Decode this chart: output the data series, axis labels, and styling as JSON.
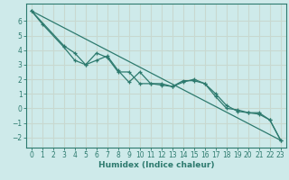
{
  "xlabel": "Humidex (Indice chaleur)",
  "bg_color": "#ceeaea",
  "grid_color": "#c8d8d0",
  "line_color": "#2d7a6e",
  "xlim": [
    -0.5,
    23.5
  ],
  "ylim": [
    -2.7,
    7.2
  ],
  "yticks": [
    -2,
    -1,
    0,
    1,
    2,
    3,
    4,
    5,
    6
  ],
  "xticks": [
    0,
    1,
    2,
    3,
    4,
    5,
    6,
    7,
    8,
    9,
    10,
    11,
    12,
    13,
    14,
    15,
    16,
    17,
    18,
    19,
    20,
    21,
    22,
    23
  ],
  "series1_x": [
    0,
    1,
    3,
    4,
    5,
    6,
    7,
    8,
    9,
    10,
    11,
    12,
    13,
    14,
    15,
    16,
    17,
    18,
    19,
    20,
    21,
    22,
    23
  ],
  "series1_y": [
    6.7,
    5.8,
    4.2,
    3.3,
    3.0,
    3.8,
    3.5,
    2.5,
    2.5,
    1.7,
    1.7,
    1.6,
    1.5,
    1.9,
    1.9,
    1.7,
    1.0,
    0.2,
    -0.2,
    -0.3,
    -0.3,
    -0.8,
    -2.2
  ],
  "series2_x": [
    0,
    3,
    4,
    5,
    6,
    7,
    8,
    9,
    10,
    11,
    12,
    13,
    14,
    15,
    16,
    17,
    18,
    19,
    20,
    21,
    22,
    23
  ],
  "series2_y": [
    6.7,
    4.3,
    3.8,
    3.0,
    3.3,
    3.6,
    2.6,
    1.8,
    2.5,
    1.7,
    1.7,
    1.5,
    1.8,
    2.0,
    1.7,
    0.8,
    0.0,
    -0.1,
    -0.3,
    -0.4,
    -0.8,
    -2.2
  ],
  "series3_x": [
    0,
    23
  ],
  "series3_y": [
    6.7,
    -2.2
  ]
}
